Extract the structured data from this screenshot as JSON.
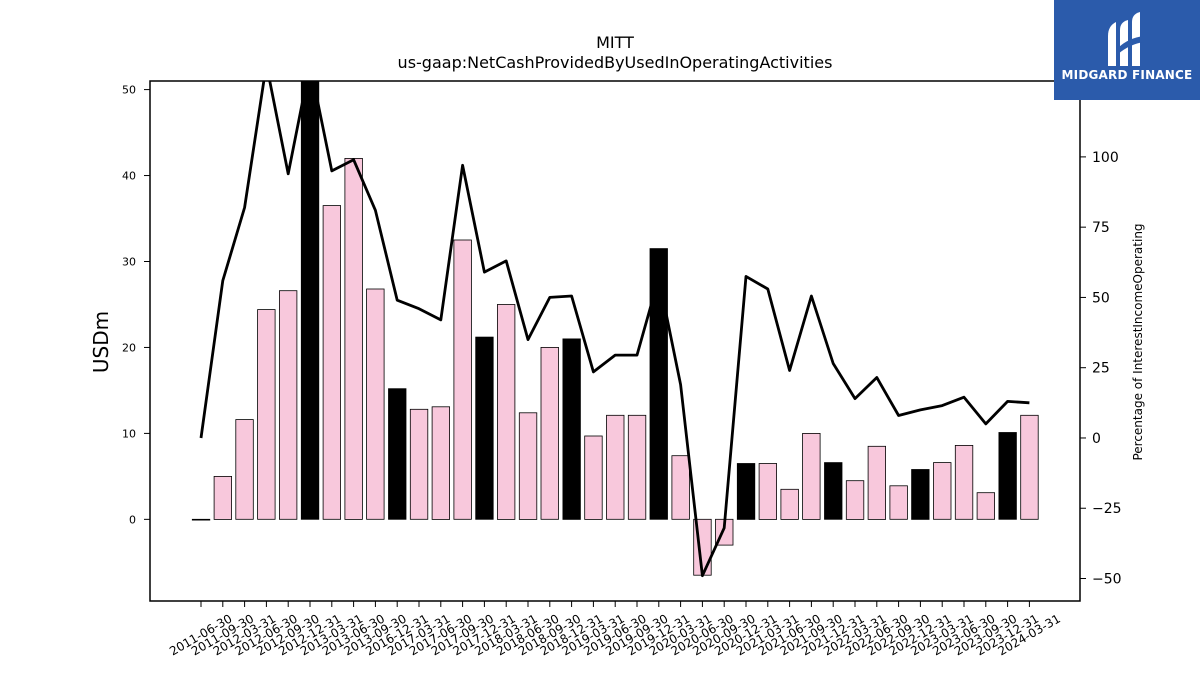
{
  "brand": {
    "name": "MIDGARD FINANCE",
    "logo_icon": "midgard-logo-icon",
    "background": "#2b5bab"
  },
  "chart_data": {
    "type": "bar",
    "title": "MITT",
    "subtitle": "us-gaap:NetCashProvidedByUsedInOperatingActivities",
    "ylabel": "USDm",
    "y2label": "Percentage of InterestIncomeOperating",
    "ylim": [
      -9.5,
      51
    ],
    "y2lim": [
      -58,
      127
    ],
    "yticks": [
      0,
      10,
      20,
      30,
      40,
      50
    ],
    "y2ticks": [
      -50,
      -25,
      0,
      25,
      50,
      75,
      100
    ],
    "categories": [
      "2011-06-30",
      "2011-09-30",
      "2012-03-31",
      "2012-06-30",
      "2012-09-30",
      "2012-12-31",
      "2013-03-31",
      "2013-06-30",
      "2013-09-30",
      "2016-12-31",
      "2017-03-31",
      "2017-06-30",
      "2017-09-30",
      "2017-12-31",
      "2018-03-31",
      "2018-06-30",
      "2018-09-30",
      "2018-12-31",
      "2019-03-31",
      "2019-06-30",
      "2019-09-30",
      "2019-12-31",
      "2020-03-31",
      "2020-06-30",
      "2020-09-30",
      "2020-12-31",
      "2021-03-31",
      "2021-06-30",
      "2021-09-30",
      "2021-12-31",
      "2022-03-31",
      "2022-06-30",
      "2022-09-30",
      "2022-12-31",
      "2023-03-31",
      "2023-06-30",
      "2023-09-30",
      "2023-12-31",
      "2024-03-31"
    ],
    "series": [
      {
        "kind": "bar",
        "axis": "left",
        "values": [
          0,
          5,
          11.6,
          24.4,
          26.6,
          52.5,
          36.5,
          42,
          26.8,
          15.2,
          12.8,
          13.1,
          32.5,
          21.2,
          25,
          12.4,
          20,
          21,
          9.7,
          12.1,
          12.1,
          31.5,
          7.4,
          -6.5,
          -3,
          6.5,
          6.5,
          3.5,
          10,
          6.6,
          4.5,
          8.5,
          3.9,
          5.8,
          6.6,
          8.6,
          3.1,
          10.1,
          12.1
        ],
        "highlight": [
          false,
          false,
          false,
          false,
          false,
          true,
          false,
          false,
          false,
          true,
          false,
          false,
          false,
          true,
          false,
          false,
          false,
          true,
          false,
          false,
          false,
          true,
          false,
          false,
          false,
          true,
          false,
          false,
          false,
          true,
          false,
          false,
          false,
          true,
          false,
          false,
          false,
          true,
          false
        ]
      },
      {
        "kind": "line",
        "axis": "right",
        "values": [
          0,
          56,
          82,
          133,
          94,
          133,
          95,
          99,
          81,
          49,
          46,
          42,
          97,
          59,
          63,
          35,
          50,
          50.5,
          23.5,
          29.5,
          29.5,
          57,
          19,
          -49,
          -32,
          57.5,
          53,
          24,
          50.5,
          26.5,
          14,
          21.5,
          8,
          10,
          11.5,
          14.5,
          5,
          13,
          12.5
        ]
      }
    ],
    "colors": {
      "bar": "#f8c8dc",
      "bar_highlight": "#000000",
      "line": "#000000",
      "bar_edge": "#000000"
    },
    "grid": false,
    "legend": "none"
  }
}
